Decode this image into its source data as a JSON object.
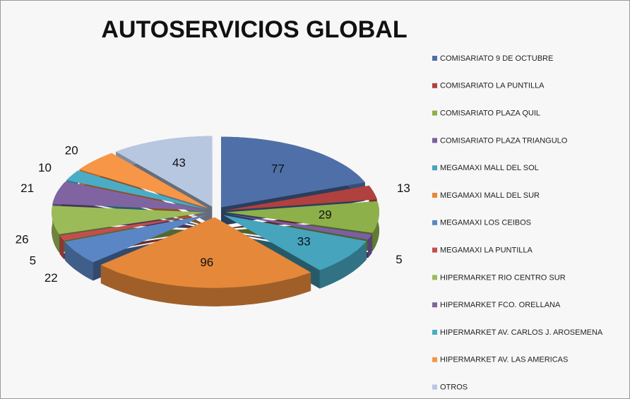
{
  "chart_data": {
    "type": "pie3d",
    "title": "AUTOSERVICIOS GLOBAL",
    "categories": [
      "COMISARIATO 9 DE OCTUBRE",
      "COMISARIATO LA PUNTILLA",
      "COMISARIATO PLAZA QUIL",
      "COMISARIATO PLAZA TRIANGULO",
      "MEGAMAXI MALL DEL SOL",
      "MEGAMAXI MALL DEL SUR",
      "MEGAMAXI LOS CEIBOS",
      "MEGAMAXI LA PUNTILLA",
      "HIPERMARKET RIO CENTRO SUR",
      "HIPERMARKET FCO. ORELLANA",
      "HIPERMARKET AV. CARLOS J. AROSEMENA",
      "HIPERMARKET AV. LAS AMERICAS",
      "OTROS"
    ],
    "values": [
      77,
      13,
      29,
      5,
      33,
      96,
      22,
      5,
      26,
      21,
      10,
      20,
      43
    ],
    "colors": [
      "#4f6fa8",
      "#b0413e",
      "#8db04a",
      "#7b5ea3",
      "#46a4bd",
      "#e5883a",
      "#5b86c5",
      "#c44e4c",
      "#9bbb59",
      "#8064a2",
      "#4bacc6",
      "#f79646",
      "#b8c7e0"
    ],
    "legend": "right"
  }
}
